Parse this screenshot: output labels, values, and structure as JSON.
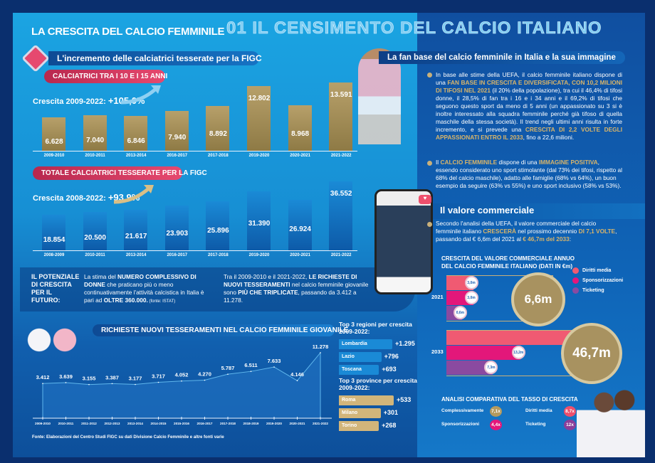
{
  "header": {
    "title": "LA CRESCITA DEL CALCIO FEMMINILE",
    "watermark": "01 IL CENSIMENTO DEL CALCIO ITALIANO"
  },
  "left": {
    "section_title": "L'incremento delle calciatrici tesserate per la FIGC",
    "chart1": {
      "label": "CALCIATRICI TRA I 10 E I 15 ANNI",
      "growth_label": "Crescita 2009-2022:",
      "growth_value": "+105,0%"
    },
    "chart2": {
      "label": "TOTALE CALCIATRICI TESSERATE PER LA FIGC",
      "growth_label": "Crescita 2008-2022:",
      "growth_value": "+93,9%"
    },
    "potential": {
      "heading": "IL POTENZIALE DI CRESCITA PER IL FUTURO:",
      "text1_a": "La stima del ",
      "text1_b": "NUMERO COMPLESSIVO DI DONNE",
      "text1_c": " che praticano più o meno continuativamente l'attività calcistica in Italia è pari ad ",
      "text1_d": "OLTRE 360.000.",
      "text1_e": " (fonte: ISTAT)",
      "text2_a": "Tra il 2009-2010 e il 2021-2022, ",
      "text2_b": "LE RICHIESTE DI NUOVI TESSERAMENTI",
      "text2_c": " nel calcio femminile giovanile sono ",
      "text2_d": "PIÙ CHE TRIPLICATE",
      "text2_e": ", passando da 3.412 a 11.278."
    },
    "line_title": "RICHIESTE NUOVI TESSERAMENTI NEL CALCIO FEMMINILE GIOVANILE",
    "source": "Fonte: Elaborazioni del Centro Studi FIGC su dati Divisione Calcio Femminile e altre fonti varie",
    "regions_title": "Top 3 regioni per crescita 2009-2022:",
    "provinces_title": "Top 3 province per crescita 2009-2022:"
  },
  "right": {
    "fan_title": "La fan base del calcio femminile in Italia e la sua immagine",
    "fan_p1_a": "In base alle stime della UEFA, il calcio femminile italiano dispone di una ",
    "fan_p1_b": "FAN BASE IN CRESCITA E DIVERSIFICATA, CON 10,2 MILIONI DI TIFOSI NEL 2021",
    "fan_p1_c": " (il 20% della popolazione), tra cui il 46,4% di tifosi donne, il 28,5% di fan tra i 16 e i 34 anni e il 69,2% di tifosi che seguono questo sport da meno di 5 anni (un appassionato su 3 si è inoltre interessato alla squadra femminile perché già tifoso di quella maschile della stessa società). Il trend negli ultimi anni risulta in forte incremento, e si prevede una ",
    "fan_p1_d": "CRESCITA DI 2,2 VOLTE DEGLI APPASSIONATI ENTRO IL 2033",
    "fan_p1_e": ", fino a 22,6 milioni.",
    "fan_p2_a": "Il ",
    "fan_p2_b": "CALCIO FEMMINILE",
    "fan_p2_c": " dispone di una ",
    "fan_p2_d": "IMMAGINE POSITIVA",
    "fan_p2_e": ", essendo considerato uno sport stimolante (dal 73% dei tifosi, rispetto al 68% del calcio maschile), adatto alle famiglie (68% vs 64%), un buon esempio da seguire (63% vs 55%) e uno sport inclusivo (58% vs 53%).",
    "commercial_title": "Il valore commerciale",
    "com_a": "Secondo l'analisi della UEFA, il valore commerciale del calcio femminile italiano ",
    "com_b": "CRESCERÀ",
    "com_c": " nel prossimo decennio ",
    "com_d": "DI 7,1 VOLTE",
    "com_e": ", passando dal € 6,6m del 2021 al ",
    "com_f": "€ 46,7m del 2033",
    ":": "",
    "com_chart_title": "CRESCITA DEL VALORE COMMERCIALE ANNUO DEL CALCIO FEMMINILE ITALIANO (DATI IN €m)",
    "analysis_title": "ANALISI COMPARATIVA DEL TASSO DI CRESCITA",
    "rates": [
      {
        "label": "Complessivamente",
        "value": "7,1x",
        "color": "#b49a5e"
      },
      {
        "label": "Diritti media",
        "value": "8,7x",
        "color": "#ee4f6c"
      },
      {
        "label": "Sponsorizzazioni",
        "value": "4,4x",
        "color": "#e3177a"
      },
      {
        "label": "Ticketing",
        "value": "12x",
        "color": "#8a3e9a"
      }
    ]
  },
  "chart_data": [
    {
      "type": "bar",
      "title": "CALCIATRICI TRA I 10 E I 15 ANNI",
      "categories": [
        "2009-2010",
        "2010-2011",
        "2013-2014",
        "2016-2017",
        "2017-2018",
        "2019-2020",
        "2020-2021",
        "2021-2022"
      ],
      "values": [
        6628,
        7040,
        6846,
        7940,
        8892,
        12802,
        8968,
        13591
      ],
      "labels": [
        "6.628",
        "7.040",
        "6.846",
        "7.940",
        "8.892",
        "12.802",
        "8.968",
        "13.591"
      ],
      "color": "#a58f5a"
    },
    {
      "type": "bar",
      "title": "TOTALE CALCIATRICI TESSERATE PER LA FIGC",
      "categories": [
        "2008-2009",
        "2010-2011",
        "2013-2014",
        "2016-2017",
        "2017-2018",
        "2019-2020",
        "2020-2021",
        "2021-2022"
      ],
      "values": [
        18854,
        20500,
        21617,
        23903,
        25896,
        31390,
        26924,
        36552
      ],
      "labels": [
        "18.854",
        "20.500",
        "21.617",
        "23.903",
        "25.896",
        "31.390",
        "26.924",
        "36.552"
      ],
      "color": "#1680cf"
    },
    {
      "type": "area",
      "title": "RICHIESTE NUOVI TESSERAMENTI NEL CALCIO FEMMINILE GIOVANILE",
      "categories": [
        "2009-2010",
        "2010-2011",
        "2011-2012",
        "2012-2013",
        "2013-2014",
        "2014-2015",
        "2015-2016",
        "2016-2017",
        "2017-2018",
        "2018-2019",
        "2019-2020",
        "2020-2021",
        "2021-2022"
      ],
      "values": [
        3412,
        3639,
        3155,
        3387,
        3177,
        3717,
        4052,
        4270,
        5787,
        6511,
        7633,
        4146,
        11278
      ],
      "labels": [
        "3.412",
        "3.639",
        "3.155",
        "3.387",
        "3.177",
        "3.717",
        "4.052",
        "4.270",
        "5.787",
        "6.511",
        "7.633",
        "4.146",
        "11.278"
      ]
    },
    {
      "type": "bar",
      "orientation": "horizontal",
      "title": "Top 3 regioni per crescita 2009-2022:",
      "categories": [
        "Lombardia",
        "Lazio",
        "Toscana"
      ],
      "values": [
        1295,
        796,
        693
      ],
      "labels": [
        "+1.295",
        "+796",
        "+693"
      ],
      "color": "#1a8ad6"
    },
    {
      "type": "bar",
      "orientation": "horizontal",
      "title": "Top 3 province per crescita 2009-2022:",
      "categories": [
        "Roma",
        "Milano",
        "Torino"
      ],
      "values": [
        533,
        301,
        268
      ],
      "labels": [
        "+533",
        "+301",
        "+268"
      ],
      "color": "#d2b57a"
    },
    {
      "type": "bar",
      "orientation": "horizontal",
      "title": "CRESCITA DEL VALORE COMMERCIALE ANNUO DEL CALCIO FEMMINILE ITALIANO (DATI IN €m)",
      "categories": [
        "2021",
        "2033"
      ],
      "series": [
        {
          "name": "Diritti media",
          "values": [
            3.0,
            26.2
          ],
          "labels": [
            "3,0m",
            "26,2m"
          ],
          "color": "#f05a72"
        },
        {
          "name": "Sponsorizzazioni",
          "values": [
            3.0,
            13.2
          ],
          "labels": [
            "3,0m",
            "13,2m"
          ],
          "color": "#e3177a"
        },
        {
          "name": "Ticketing",
          "values": [
            0.6,
            7.3
          ],
          "labels": [
            "0,6m",
            "7,3m"
          ],
          "color": "#8a4aa0"
        }
      ],
      "totals": [
        "6,6m",
        "46,7m"
      ],
      "legend": "top-right"
    }
  ]
}
